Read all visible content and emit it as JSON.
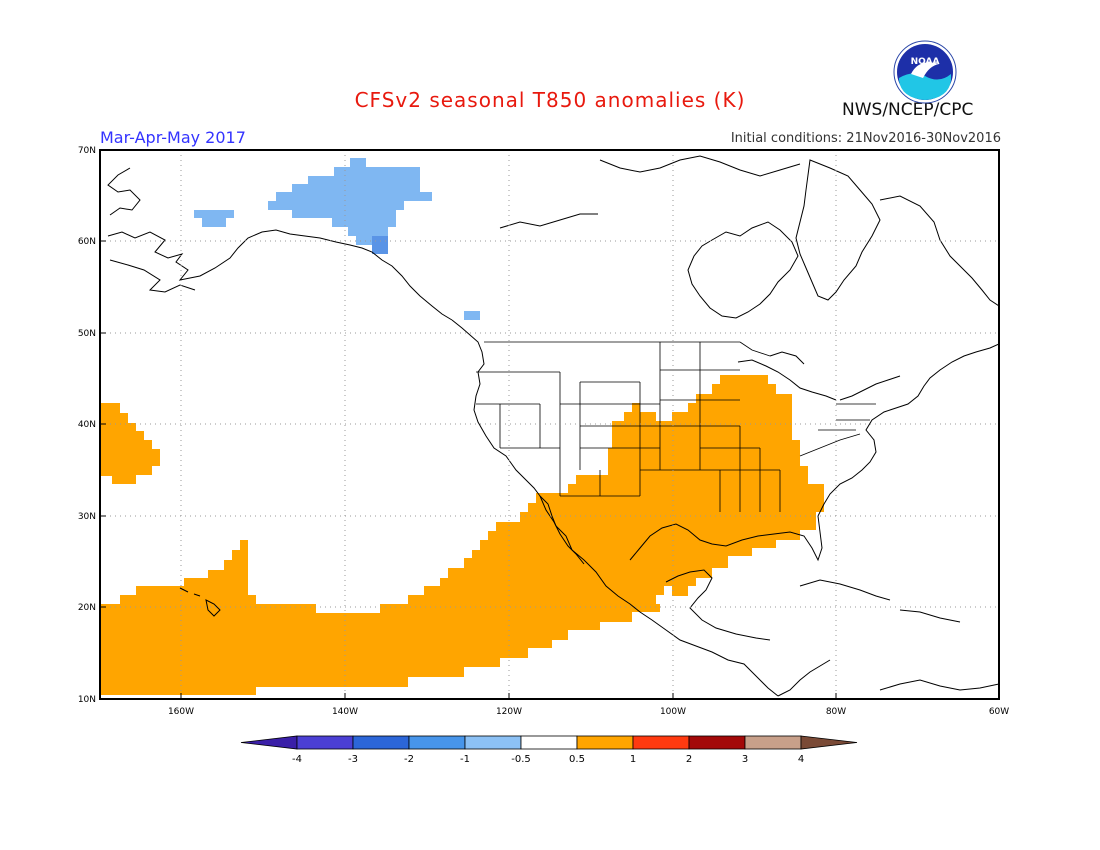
{
  "title": "CFSv2 seasonal T850 anomalies (K)",
  "season": "Mar-Apr-May 2017",
  "initial_conditions": "Initial conditions: 21Nov2016-30Nov2016",
  "agency": "NWS/NCEP/CPC",
  "logo_text": "NOAA",
  "axes": {
    "lat_labels": [
      "70N",
      "60N",
      "50N",
      "40N",
      "30N",
      "20N",
      "10N"
    ],
    "lon_labels": [
      "160W",
      "140W",
      "120W",
      "100W",
      "80W",
      "60W"
    ]
  },
  "colorbar": {
    "labels": [
      "-4",
      "-3",
      "-2",
      "-1",
      "-0.5",
      "0.5",
      "1",
      "2",
      "3",
      "4"
    ],
    "colors": [
      "#3a1fa8",
      "#4b3fd4",
      "#2c66d8",
      "#4795ea",
      "#8cc1f5",
      "#ffffff",
      "#ffa500",
      "#ff3a10",
      "#a30909",
      "#c8a08a",
      "#7a4a36"
    ]
  },
  "colors": {
    "warm_anomaly": "#ffa500",
    "cool_anomaly": "#7fb7f2",
    "cool_anomaly_dark": "#5a94e6"
  }
}
